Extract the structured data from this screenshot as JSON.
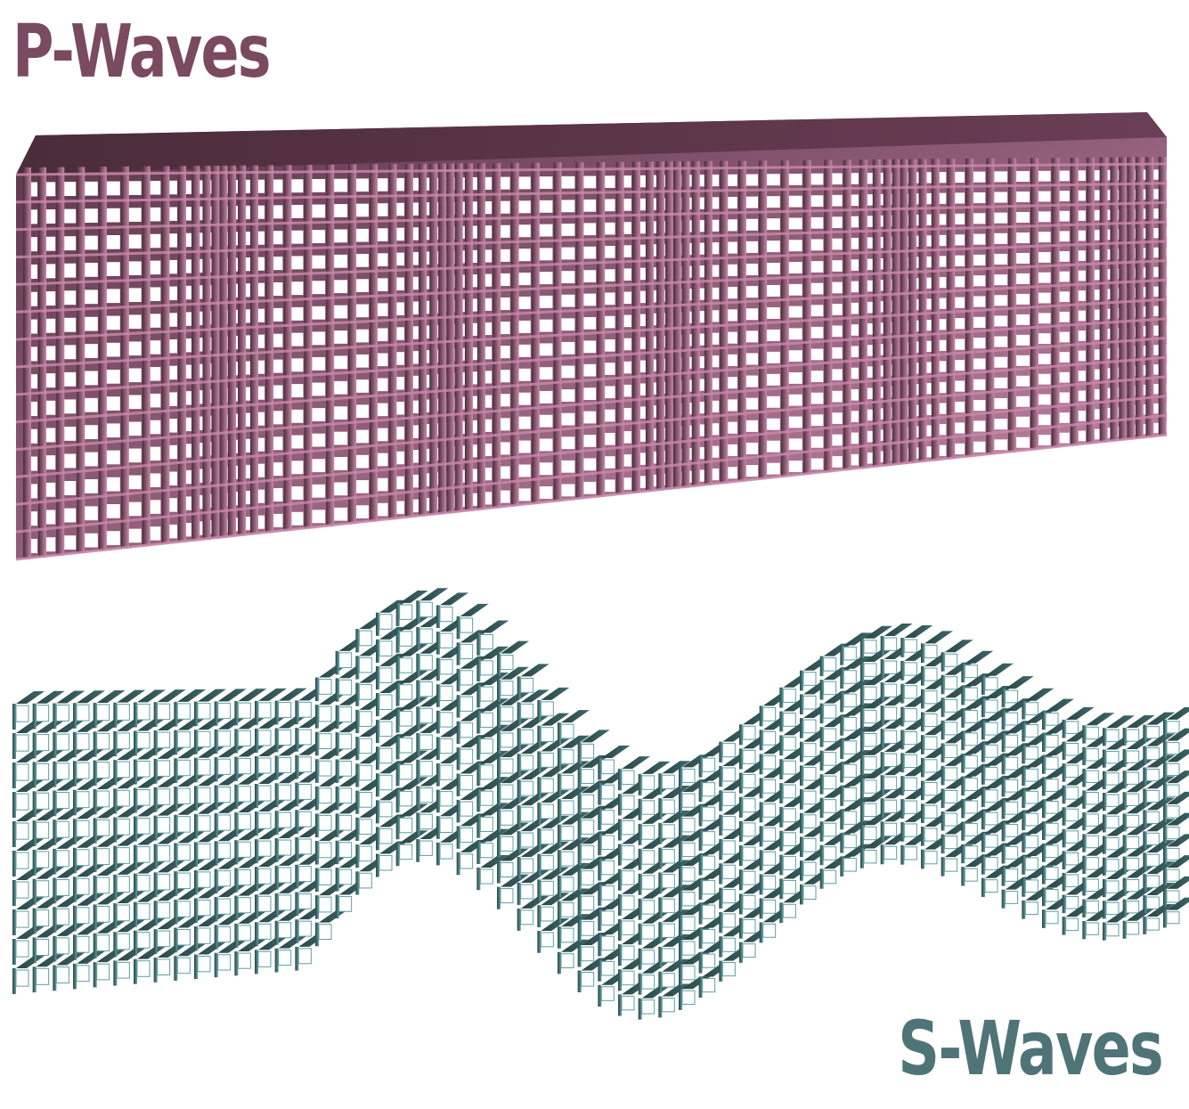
{
  "p_waves": {
    "label": "P-Waves",
    "label_color": "#7a4a60",
    "front_color": "#ffffff",
    "top_color": "#4a2c3a",
    "side_color": "#c888aa",
    "highlight_color": "#f3dbe8"
  },
  "s_waves": {
    "label": "S-Waves",
    "label_color": "#4f7478",
    "front_color": "#ffffff",
    "top_color": "#2a4446",
    "side_color": "#5f9ea0",
    "highlight_color": "#cfeeee"
  }
}
